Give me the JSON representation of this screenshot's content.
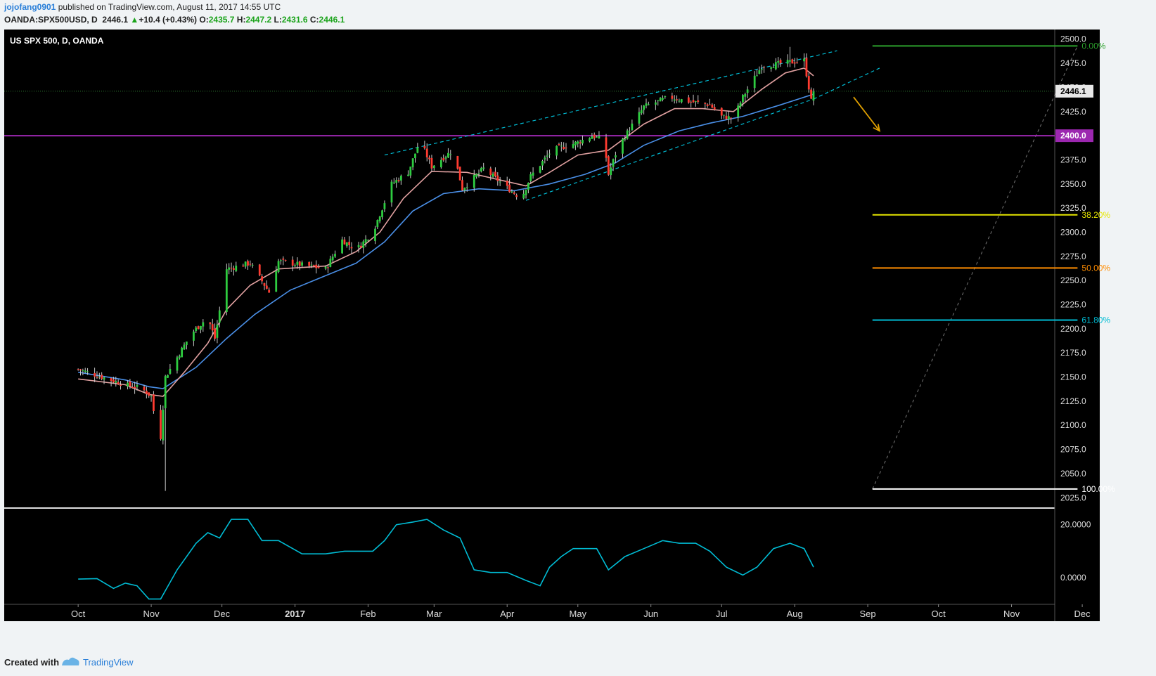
{
  "header": {
    "user": "jojofang0901",
    "published": "published on TradingView.com, August 11, 2017 14:55 UTC",
    "symbol": "OANDA:SPX500USD, D",
    "last": "2446.1",
    "change": "+10.4 (+0.43%)",
    "o_label": "O:",
    "o": "2435.7",
    "h_label": "H:",
    "h": "2447.2",
    "l_label": "L:",
    "l": "2431.6",
    "c_label": "C:",
    "c": "2446.1"
  },
  "footer": {
    "created": "Created with",
    "brand": "TradingView"
  },
  "chart_data": {
    "type": "candlestick",
    "title": "US SPX 500, D, OANDA",
    "ylim": [
      2015,
      2510
    ],
    "y_ticks": [
      "2025.0",
      "2050.0",
      "2075.0",
      "2100.0",
      "2125.0",
      "2150.0",
      "2175.0",
      "2200.0",
      "2225.0",
      "2250.0",
      "2275.0",
      "2300.0",
      "2325.0",
      "2350.0",
      "2375.0",
      "2400.0",
      "2425.0",
      "2450.0",
      "2475.0",
      "2500.0"
    ],
    "x_labels": [
      "Oct",
      "Nov",
      "Dec",
      "2017",
      "Feb",
      "Mar",
      "Apr",
      "May",
      "Jun",
      "Jul",
      "Aug",
      "Sep",
      "Oct",
      "Nov",
      "Dec"
    ],
    "price_path": [
      {
        "x": 0,
        "y": 2158
      },
      {
        "x": 20,
        "y": 2142
      },
      {
        "x": 27,
        "y": 2138
      },
      {
        "x": 31,
        "y": 2130
      },
      {
        "x": 33,
        "y": 2100
      },
      {
        "x": 35,
        "y": 2088
      },
      {
        "x": 37,
        "y": 2150
      },
      {
        "x": 48,
        "y": 2195
      },
      {
        "x": 55,
        "y": 2212
      },
      {
        "x": 58,
        "y": 2190
      },
      {
        "x": 63,
        "y": 2262
      },
      {
        "x": 73,
        "y": 2268
      },
      {
        "x": 81,
        "y": 2238
      },
      {
        "x": 85,
        "y": 2270
      },
      {
        "x": 105,
        "y": 2262
      },
      {
        "x": 112,
        "y": 2292
      },
      {
        "x": 118,
        "y": 2282
      },
      {
        "x": 125,
        "y": 2300
      },
      {
        "x": 133,
        "y": 2350
      },
      {
        "x": 140,
        "y": 2362
      },
      {
        "x": 145,
        "y": 2395
      },
      {
        "x": 150,
        "y": 2368
      },
      {
        "x": 159,
        "y": 2385
      },
      {
        "x": 163,
        "y": 2345
      },
      {
        "x": 172,
        "y": 2366
      },
      {
        "x": 181,
        "y": 2348
      },
      {
        "x": 188,
        "y": 2335
      },
      {
        "x": 192,
        "y": 2358
      },
      {
        "x": 201,
        "y": 2385
      },
      {
        "x": 212,
        "y": 2393
      },
      {
        "x": 218,
        "y": 2400
      },
      {
        "x": 223,
        "y": 2395
      },
      {
        "x": 225,
        "y": 2360
      },
      {
        "x": 229,
        "y": 2388
      },
      {
        "x": 240,
        "y": 2430
      },
      {
        "x": 251,
        "y": 2440
      },
      {
        "x": 258,
        "y": 2436
      },
      {
        "x": 268,
        "y": 2432
      },
      {
        "x": 273,
        "y": 2420
      },
      {
        "x": 278,
        "y": 2418
      },
      {
        "x": 282,
        "y": 2440
      },
      {
        "x": 290,
        "y": 2472
      },
      {
        "x": 299,
        "y": 2475
      },
      {
        "x": 308,
        "y": 2478
      },
      {
        "x": 311,
        "y": 2436
      },
      {
        "x": 312,
        "y": 2446.1
      }
    ],
    "ema_fast": [
      {
        "x": 0,
        "y": 2148
      },
      {
        "x": 20,
        "y": 2142
      },
      {
        "x": 30,
        "y": 2132
      },
      {
        "x": 36,
        "y": 2130
      },
      {
        "x": 45,
        "y": 2155
      },
      {
        "x": 55,
        "y": 2185
      },
      {
        "x": 63,
        "y": 2220
      },
      {
        "x": 73,
        "y": 2245
      },
      {
        "x": 85,
        "y": 2262
      },
      {
        "x": 105,
        "y": 2265
      },
      {
        "x": 118,
        "y": 2280
      },
      {
        "x": 128,
        "y": 2300
      },
      {
        "x": 138,
        "y": 2335
      },
      {
        "x": 150,
        "y": 2363
      },
      {
        "x": 165,
        "y": 2362
      },
      {
        "x": 181,
        "y": 2353
      },
      {
        "x": 190,
        "y": 2348
      },
      {
        "x": 200,
        "y": 2362
      },
      {
        "x": 212,
        "y": 2380
      },
      {
        "x": 225,
        "y": 2385
      },
      {
        "x": 240,
        "y": 2412
      },
      {
        "x": 253,
        "y": 2428
      },
      {
        "x": 265,
        "y": 2428
      },
      {
        "x": 278,
        "y": 2425
      },
      {
        "x": 290,
        "y": 2448
      },
      {
        "x": 300,
        "y": 2465
      },
      {
        "x": 308,
        "y": 2470
      },
      {
        "x": 312,
        "y": 2462
      }
    ],
    "ema_slow": [
      {
        "x": 0,
        "y": 2155
      },
      {
        "x": 20,
        "y": 2147
      },
      {
        "x": 30,
        "y": 2140
      },
      {
        "x": 36,
        "y": 2138
      },
      {
        "x": 50,
        "y": 2160
      },
      {
        "x": 63,
        "y": 2190
      },
      {
        "x": 75,
        "y": 2215
      },
      {
        "x": 90,
        "y": 2240
      },
      {
        "x": 105,
        "y": 2255
      },
      {
        "x": 118,
        "y": 2268
      },
      {
        "x": 130,
        "y": 2290
      },
      {
        "x": 142,
        "y": 2322
      },
      {
        "x": 155,
        "y": 2340
      },
      {
        "x": 170,
        "y": 2345
      },
      {
        "x": 185,
        "y": 2343
      },
      {
        "x": 200,
        "y": 2350
      },
      {
        "x": 215,
        "y": 2360
      },
      {
        "x": 228,
        "y": 2372
      },
      {
        "x": 240,
        "y": 2390
      },
      {
        "x": 255,
        "y": 2405
      },
      {
        "x": 268,
        "y": 2413
      },
      {
        "x": 282,
        "y": 2420
      },
      {
        "x": 298,
        "y": 2432
      },
      {
        "x": 312,
        "y": 2443
      }
    ],
    "wick_extremes": [
      {
        "x": 37,
        "y": 2032
      },
      {
        "x": 302,
        "y": 2492
      }
    ],
    "channel_lines": [
      {
        "x1": 130,
        "y1": 2380,
        "x2": 322,
        "y2": 2488
      },
      {
        "x1": 190,
        "y1": 2333,
        "x2": 312,
        "y2": 2438
      },
      {
        "x1": 312,
        "y1": 2438,
        "x2": 340,
        "y2": 2470
      }
    ],
    "horizontal_line": {
      "y": 2400.0,
      "label": "2400.0",
      "color": "#9c27b0"
    },
    "last_price": {
      "y": 2446.1,
      "label": "2446.1"
    },
    "arrow": {
      "x1": 329,
      "y1": 2440,
      "x2": 340,
      "y2": 2405,
      "color": "#e0a000"
    },
    "fibonacci": [
      {
        "level": "0.00%",
        "y": 2493,
        "color": "#2ca02c"
      },
      {
        "level": "38.20%",
        "y": 2318,
        "color": "#e6e600"
      },
      {
        "level": "50.00%",
        "y": 2263,
        "color": "#ff8c00"
      },
      {
        "level": "61.80%",
        "y": 2209,
        "color": "#00bcd4"
      },
      {
        "level": "100.00%",
        "y": 2034,
        "color": "#ffffff"
      }
    ],
    "fib_diagonal": {
      "x1": 337,
      "y1": 2034,
      "x2": 424,
      "y2": 2493
    },
    "oscillator": {
      "ticks": [
        "20.0000",
        "0.0000"
      ],
      "ylim": [
        -10,
        26
      ],
      "values": [
        {
          "x": 0,
          "y": -0.5
        },
        {
          "x": 8,
          "y": -0.3
        },
        {
          "x": 15,
          "y": -4
        },
        {
          "x": 20,
          "y": -2
        },
        {
          "x": 25,
          "y": -3
        },
        {
          "x": 30,
          "y": -8
        },
        {
          "x": 35,
          "y": -8
        },
        {
          "x": 42,
          "y": 3
        },
        {
          "x": 50,
          "y": 13
        },
        {
          "x": 55,
          "y": 17
        },
        {
          "x": 60,
          "y": 15
        },
        {
          "x": 65,
          "y": 22
        },
        {
          "x": 72,
          "y": 22
        },
        {
          "x": 78,
          "y": 14
        },
        {
          "x": 85,
          "y": 14
        },
        {
          "x": 95,
          "y": 9
        },
        {
          "x": 105,
          "y": 9
        },
        {
          "x": 113,
          "y": 10
        },
        {
          "x": 125,
          "y": 10
        },
        {
          "x": 130,
          "y": 14
        },
        {
          "x": 135,
          "y": 20
        },
        {
          "x": 142,
          "y": 21
        },
        {
          "x": 148,
          "y": 22
        },
        {
          "x": 155,
          "y": 18
        },
        {
          "x": 162,
          "y": 15
        },
        {
          "x": 168,
          "y": 3
        },
        {
          "x": 175,
          "y": 2
        },
        {
          "x": 182,
          "y": 2
        },
        {
          "x": 190,
          "y": -1
        },
        {
          "x": 196,
          "y": -3
        },
        {
          "x": 200,
          "y": 4
        },
        {
          "x": 205,
          "y": 8
        },
        {
          "x": 210,
          "y": 11
        },
        {
          "x": 220,
          "y": 11
        },
        {
          "x": 225,
          "y": 3
        },
        {
          "x": 232,
          "y": 8
        },
        {
          "x": 240,
          "y": 11
        },
        {
          "x": 248,
          "y": 14
        },
        {
          "x": 255,
          "y": 13
        },
        {
          "x": 262,
          "y": 13
        },
        {
          "x": 268,
          "y": 10
        },
        {
          "x": 275,
          "y": 4
        },
        {
          "x": 282,
          "y": 1
        },
        {
          "x": 288,
          "y": 4
        },
        {
          "x": 295,
          "y": 11
        },
        {
          "x": 302,
          "y": 13
        },
        {
          "x": 308,
          "y": 11
        },
        {
          "x": 312,
          "y": 4
        }
      ]
    }
  }
}
